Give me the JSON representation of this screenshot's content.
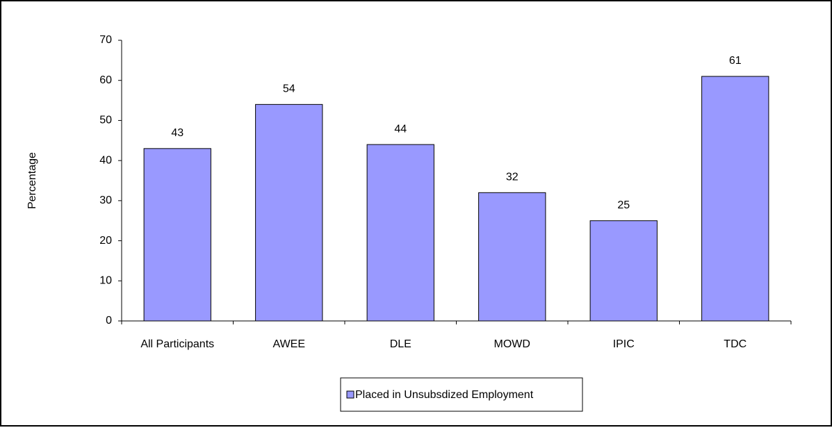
{
  "chart_data": {
    "type": "bar",
    "y_label": "Percentage",
    "categories": [
      "All Participants",
      "AWEE",
      "DLE",
      "MOWD",
      "IPIC",
      "TDC"
    ],
    "series": [
      {
        "name": "Placed in Unsubsdized Employment",
        "color": "#9999ff",
        "values": [
          43,
          54,
          44,
          32,
          25,
          61
        ]
      }
    ],
    "ylim": [
      0,
      70
    ],
    "yticks": [
      0,
      10,
      20,
      30,
      40,
      50,
      60,
      70
    ],
    "legend": "bottom",
    "grid": false
  }
}
